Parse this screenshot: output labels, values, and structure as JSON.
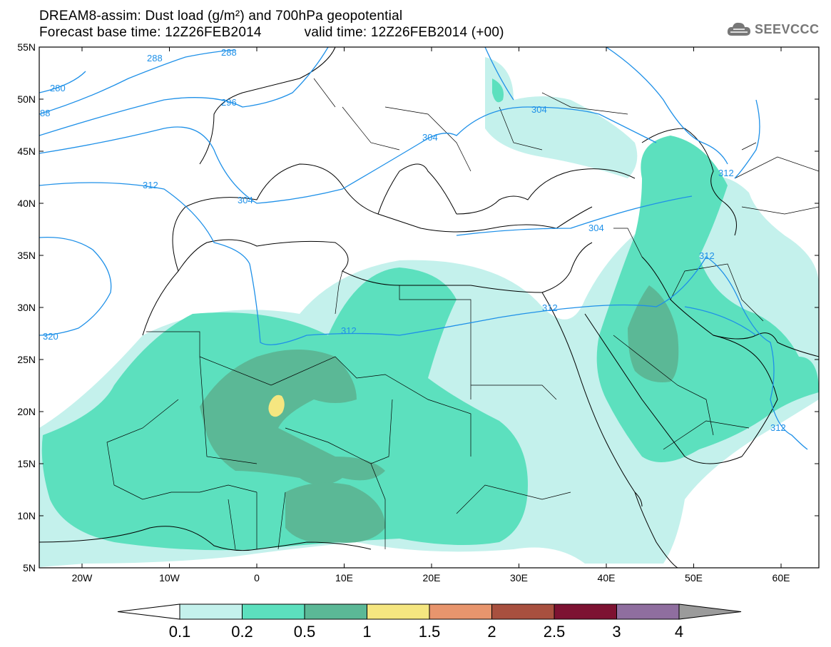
{
  "title": {
    "line1": "DREAM8-assim: Dust load (g/m²) and 700hPa geopotential",
    "base_time": "Forecast base time: 12Z26FEB2014",
    "valid_time": "valid time: 12Z26FEB2014 (+00)"
  },
  "logo": {
    "text": "SEEVCCC",
    "icon": "cloud-icon"
  },
  "map": {
    "lat_labels": [
      "55N",
      "50N",
      "45N",
      "40N",
      "35N",
      "30N",
      "25N",
      "20N",
      "15N",
      "10N",
      "5N"
    ],
    "lon_labels": [
      "20W",
      "10W",
      "0",
      "10E",
      "20E",
      "30E",
      "40E",
      "50E",
      "60E"
    ],
    "contour_labels": [
      "288",
      "288",
      "280",
      "88",
      "296",
      "304",
      "304",
      "312",
      "304",
      "312",
      "312",
      "312",
      "304",
      "312",
      "320",
      "312"
    ],
    "colors": {
      "dust_light": "#c4f1ec",
      "dust_medium": "#5ce0be",
      "dust_dark": "#5bb896",
      "dust_yellow": "#f5e680",
      "contour": "#1e90e8",
      "land_border": "#000000"
    }
  },
  "colorbar": {
    "labels": [
      "0.1",
      "0.2",
      "0.5",
      "1",
      "1.5",
      "2",
      "2.5",
      "3",
      "4"
    ],
    "colors": [
      "#ffffff",
      "#c4f1ec",
      "#5ce0be",
      "#5bb896",
      "#f5e680",
      "#e8956d",
      "#a8503f",
      "#7d1232",
      "#8f6e9f",
      "#9b9b9b"
    ]
  }
}
